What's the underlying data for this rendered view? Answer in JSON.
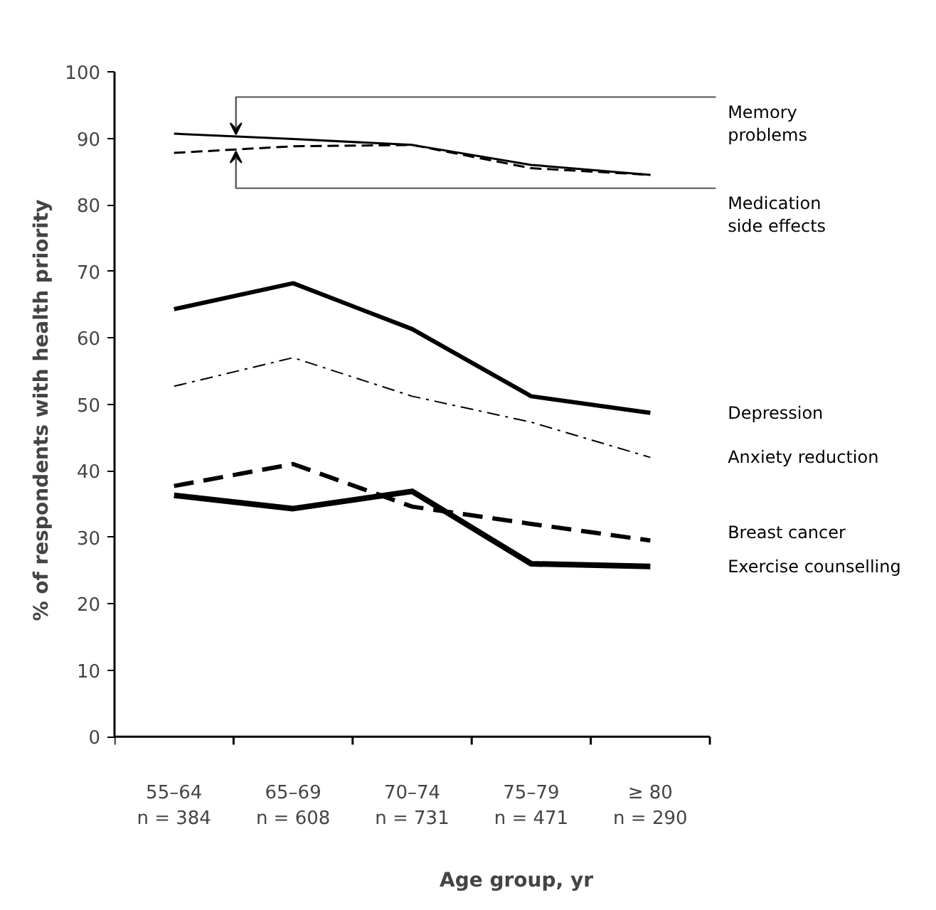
{
  "chart_data": {
    "type": "line",
    "xlabel": "Age group, yr",
    "ylabel": "% of respondents with health priority",
    "categories": [
      "55–64\nn = 384",
      "65–69\nn = 608",
      "70–74\nn = 731",
      "75–79\nn = 471",
      "≥ 80\nn = 290"
    ],
    "ylim": [
      0,
      100
    ],
    "yticks": [
      0,
      10,
      20,
      30,
      40,
      50,
      60,
      70,
      80,
      90,
      100
    ],
    "grid": false,
    "marker": "none",
    "series": [
      {
        "name": "Memory\nproblems",
        "color": "#000000",
        "line_style": "solid",
        "values": [
          90.7,
          89.9,
          89.0,
          86.0,
          84.5
        ]
      },
      {
        "name": "Medication\nside effects",
        "color": "#000000",
        "line_style": "dashed",
        "values": [
          87.8,
          88.8,
          89.0,
          85.5,
          84.5
        ]
      },
      {
        "name": "Depression",
        "color": "#000000",
        "line_style": "solid",
        "values": [
          64.3,
          68.2,
          61.3,
          51.2,
          48.7
        ]
      },
      {
        "name": "Anxiety reduction",
        "color": "#000000",
        "line_style": "dashdot",
        "values": [
          52.7,
          57.0,
          51.2,
          47.3,
          42.0
        ]
      },
      {
        "name": "Breast cancer",
        "color": "#000000",
        "line_style": "dashed",
        "values": [
          37.7,
          41.0,
          34.6,
          32.0,
          29.5
        ]
      },
      {
        "name": "Exercise counselling",
        "color": "#000000",
        "line_style": "solid",
        "values": [
          36.3,
          34.3,
          36.9,
          26.0,
          25.6
        ]
      }
    ]
  }
}
